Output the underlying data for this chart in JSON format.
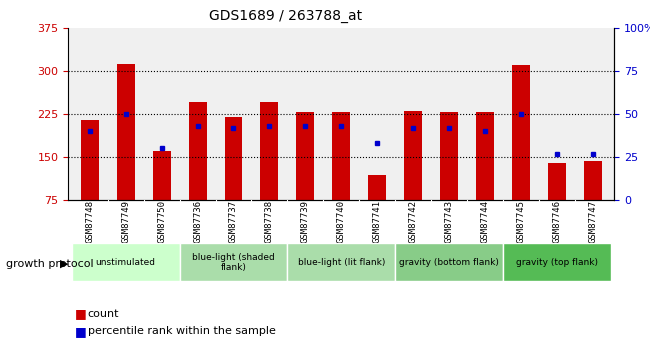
{
  "title": "GDS1689 / 263788_at",
  "samples": [
    "GSM87748",
    "GSM87749",
    "GSM87750",
    "GSM87736",
    "GSM87737",
    "GSM87738",
    "GSM87739",
    "GSM87740",
    "GSM87741",
    "GSM87742",
    "GSM87743",
    "GSM87744",
    "GSM87745",
    "GSM87746",
    "GSM87747"
  ],
  "counts": [
    215,
    312,
    160,
    245,
    220,
    245,
    228,
    228,
    118,
    230,
    228,
    228,
    310,
    140,
    143
  ],
  "percentiles": [
    40,
    50,
    30,
    43,
    42,
    43,
    43,
    43,
    33,
    42,
    42,
    40,
    50,
    27,
    27
  ],
  "y_min": 75,
  "y_max": 375,
  "y_left_ticks": [
    75,
    150,
    225,
    300,
    375
  ],
  "y_right_ticks": [
    0,
    25,
    50,
    75,
    100
  ],
  "bar_color": "#cc0000",
  "dot_color": "#0000cc",
  "bar_width": 0.5,
  "groups": [
    {
      "label": "unstimulated",
      "indices": [
        0,
        1,
        2
      ]
    },
    {
      "label": "blue-light (shaded\nflank)",
      "indices": [
        3,
        4,
        5
      ]
    },
    {
      "label": "blue-light (lit flank)",
      "indices": [
        6,
        7,
        8
      ]
    },
    {
      "label": "gravity (bottom flank)",
      "indices": [
        9,
        10,
        11
      ]
    },
    {
      "label": "gravity (top flank)",
      "indices": [
        12,
        13,
        14
      ]
    }
  ],
  "group_bg_colors": [
    "#ccffcc",
    "#aaddaa",
    "#aaddaa",
    "#88cc88",
    "#55bb55"
  ],
  "growth_protocol_label": "growth protocol",
  "legend_count_label": "count",
  "legend_percentile_label": "percentile rank within the sample",
  "left_axis_color": "#cc0000",
  "right_axis_color": "#0000cc",
  "bg_plot_color": "#f0f0f0",
  "label_bg_color": "#cccccc",
  "grid_lines": [
    150,
    225,
    300
  ]
}
